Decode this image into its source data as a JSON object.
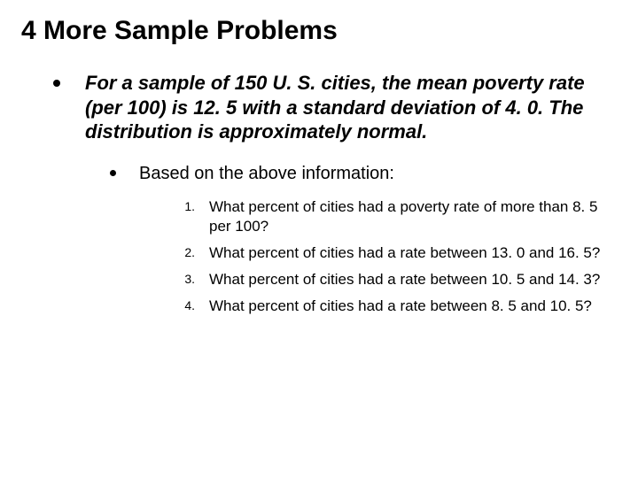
{
  "title": "4 More Sample Problems",
  "intro": "For a sample of 150 U. S. cities, the mean poverty rate (per 100) is 12. 5 with a standard deviation of 4. 0. The distribution is approximately normal.",
  "subhead": "Based on the above information:",
  "questions": [
    {
      "num": "1.",
      "text": "What percent of cities had a poverty rate of more than 8. 5 per 100?"
    },
    {
      "num": "2.",
      "text": "What percent of cities had a rate between 13. 0 and 16. 5?"
    },
    {
      "num": "3.",
      "text": "What percent of cities had a rate between 10. 5 and 14. 3?"
    },
    {
      "num": "4.",
      "text": "What percent of cities had a rate between 8. 5 and 10. 5?"
    }
  ],
  "colors": {
    "background": "#ffffff",
    "text": "#000000",
    "bullet": "#000000"
  },
  "typography": {
    "title_fontsize": 30,
    "intro_fontsize": 22,
    "sub_fontsize": 20,
    "question_fontsize": 17,
    "num_fontsize": 14
  }
}
